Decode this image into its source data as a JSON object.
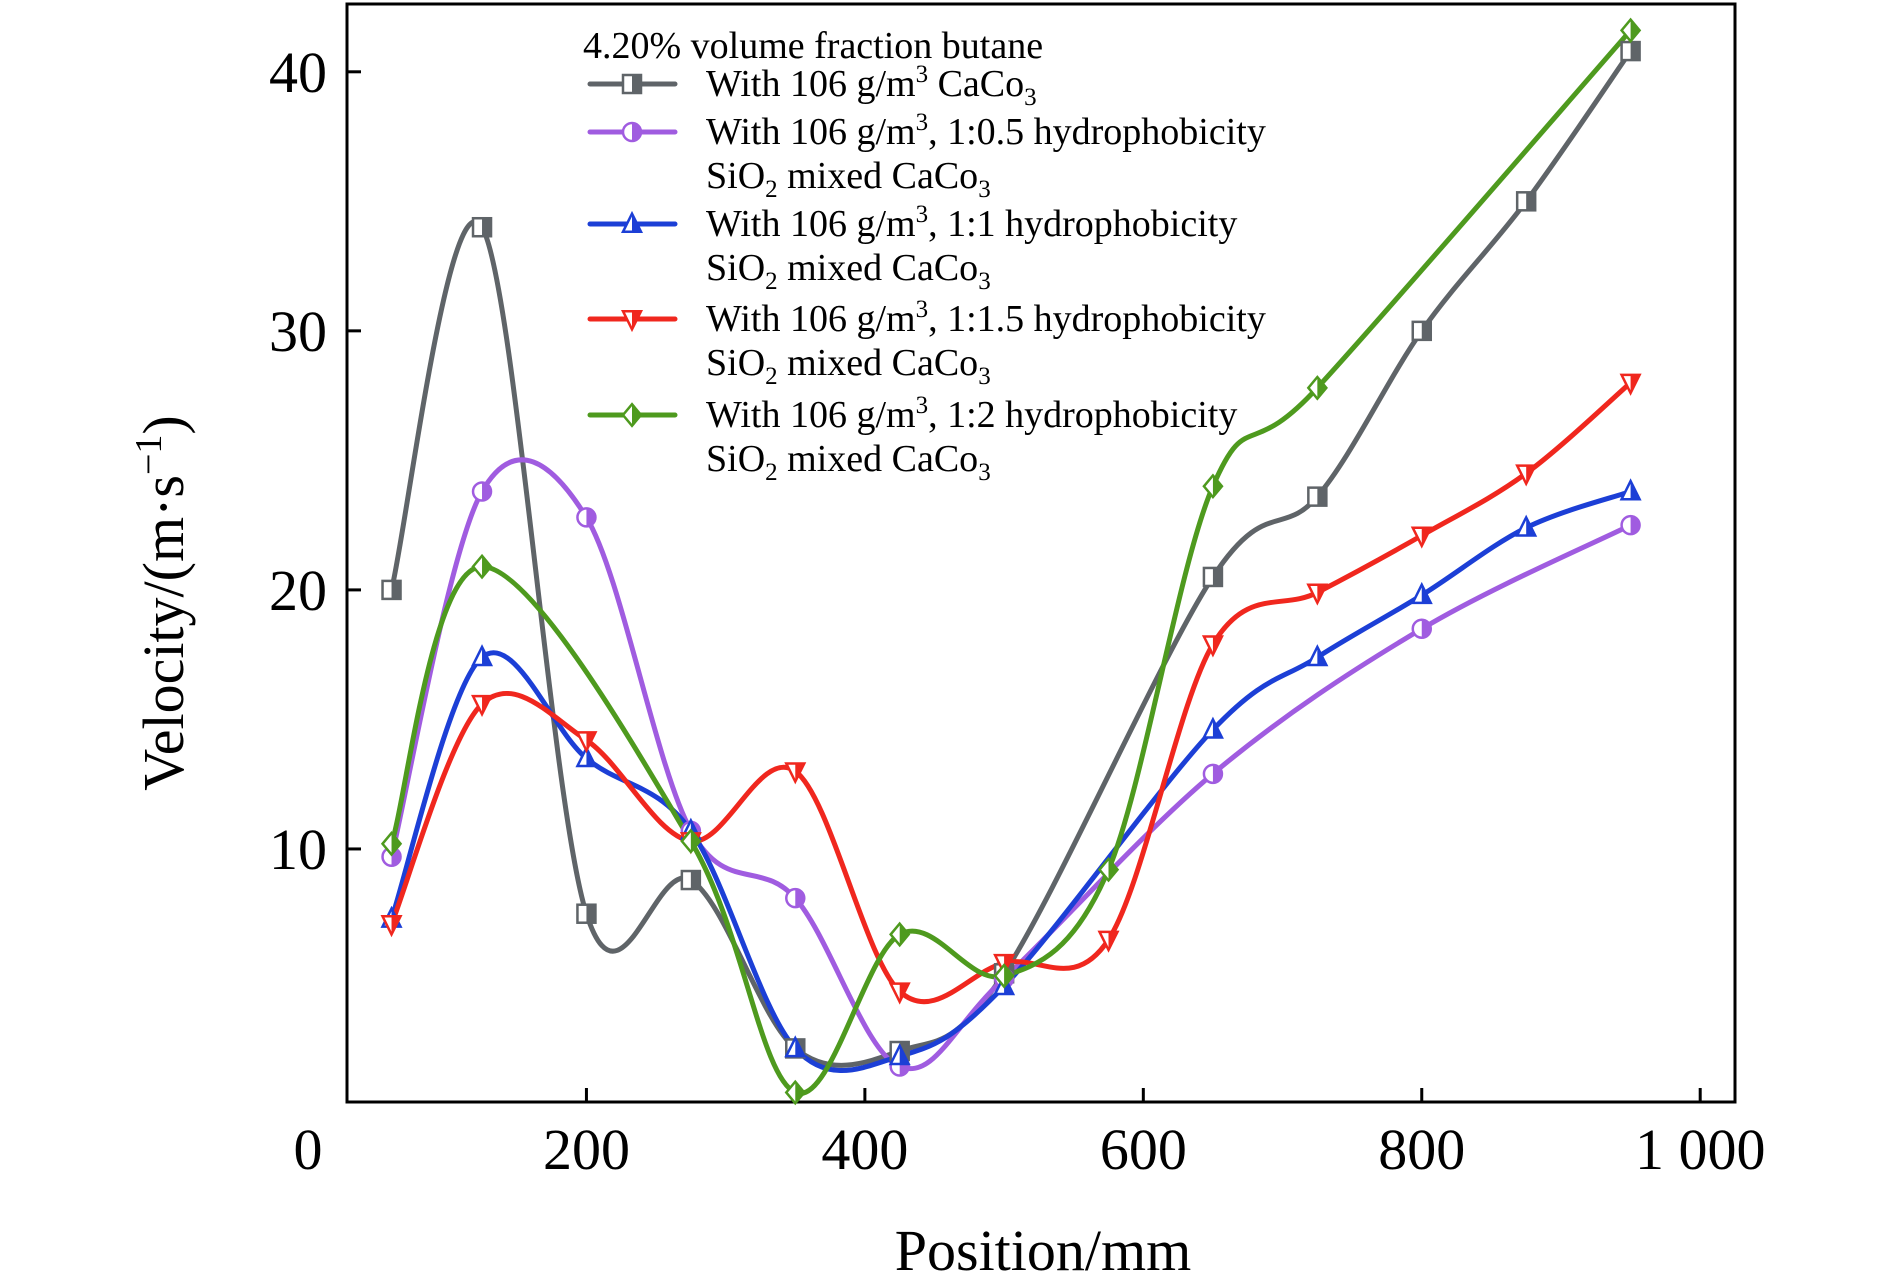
{
  "chart_data": {
    "type": "line",
    "title": "",
    "legend_title": "4.20% volume fraction butane",
    "xlabel": "Position/mm",
    "ylabel_main": "Velocity/(m·s",
    "ylabel_sup": "−1",
    "ylabel_close": ")",
    "xlim": [
      0,
      1000
    ],
    "ylim": [
      0,
      42
    ],
    "xticks": [
      {
        "value": 0,
        "label": "0"
      },
      {
        "value": 200,
        "label": "200"
      },
      {
        "value": 400,
        "label": "400"
      },
      {
        "value": 600,
        "label": "600"
      },
      {
        "value": 800,
        "label": "800"
      },
      {
        "value": 1000,
        "label": "1 000"
      }
    ],
    "yticks": [
      {
        "value": 10,
        "label": "10"
      },
      {
        "value": 20,
        "label": "20"
      },
      {
        "value": 30,
        "label": "30"
      },
      {
        "value": 40,
        "label": "40"
      }
    ],
    "grid": false,
    "legend_position": "top-center",
    "x": [
      60,
      125,
      200,
      275,
      350,
      425,
      500,
      575,
      650,
      725,
      800,
      875,
      950
    ],
    "series": [
      {
        "name": "With 106 g/m³ CaCo₃",
        "legend_lines": [
          [
            "With 106 g/m",
            "3",
            " CaCo",
            "3",
            ""
          ]
        ],
        "color": "#5f6468",
        "marker": "half-square",
        "values": [
          20,
          34,
          7.5,
          8.8,
          2.3,
          2.2,
          5.2,
          null,
          20.5,
          23.6,
          30,
          35,
          40.8
        ]
      },
      {
        "name": "With 106 g/m³, 1:0.5 hydrophobicity SiO₂ mixed CaCo₃",
        "legend_lines": [
          [
            "With 106 g/m",
            "3",
            ", 1:0.5 hydrophobicity",
            "",
            ""
          ],
          [
            "SiO",
            "2",
            " mixed CaCo",
            "3",
            ""
          ]
        ],
        "color": "#a05ce0",
        "marker": "half-circle",
        "values": [
          9.7,
          23.8,
          22.8,
          10.7,
          8.1,
          1.6,
          5.0,
          null,
          12.9,
          null,
          18.5,
          null,
          22.5
        ]
      },
      {
        "name": "With 106 g/m³, 1:1 hydrophobicity SiO₂ mixed CaCo₃",
        "legend_lines": [
          [
            "With 106 g/m",
            "3",
            ", 1:1 hydrophobicity",
            "",
            ""
          ],
          [
            "SiO",
            "2",
            " mixed CaCo",
            "3",
            ""
          ]
        ],
        "color": "#1c3fd6",
        "marker": "half-triangle-up",
        "values": [
          7.3,
          17.4,
          13.5,
          10.7,
          2.3,
          2.0,
          4.7,
          null,
          14.6,
          17.4,
          19.8,
          22.4,
          23.8
        ]
      },
      {
        "name": "With 106 g/m³, 1:1.5 hydrophobicity SiO₂ mixed CaCo₃",
        "legend_lines": [
          [
            "With 106 g/m",
            "3",
            ", 1:1.5 hydrophobicity",
            "",
            ""
          ],
          [
            "SiO",
            "2",
            " mixed CaCo",
            "3",
            ""
          ]
        ],
        "color": "#f0271e",
        "marker": "half-triangle-down",
        "values": [
          7.1,
          15.6,
          14.2,
          10.3,
          13.0,
          4.5,
          5.6,
          6.5,
          17.9,
          19.9,
          22.1,
          24.5,
          28.0
        ]
      },
      {
        "name": "With 106 g/m³, 1:2 hydrophobicity SiO₂ mixed CaCo₃",
        "legend_lines": [
          [
            "With 106 g/m",
            "3",
            ", 1:2 hydrophobicity",
            "",
            ""
          ],
          [
            "SiO",
            "2",
            " mixed CaCo",
            "3",
            ""
          ]
        ],
        "color": "#4e9a1e",
        "marker": "half-diamond",
        "values": [
          10.2,
          20.9,
          null,
          10.3,
          0.6,
          6.7,
          5.1,
          9.2,
          24.0,
          27.8,
          null,
          null,
          41.6
        ]
      }
    ]
  }
}
